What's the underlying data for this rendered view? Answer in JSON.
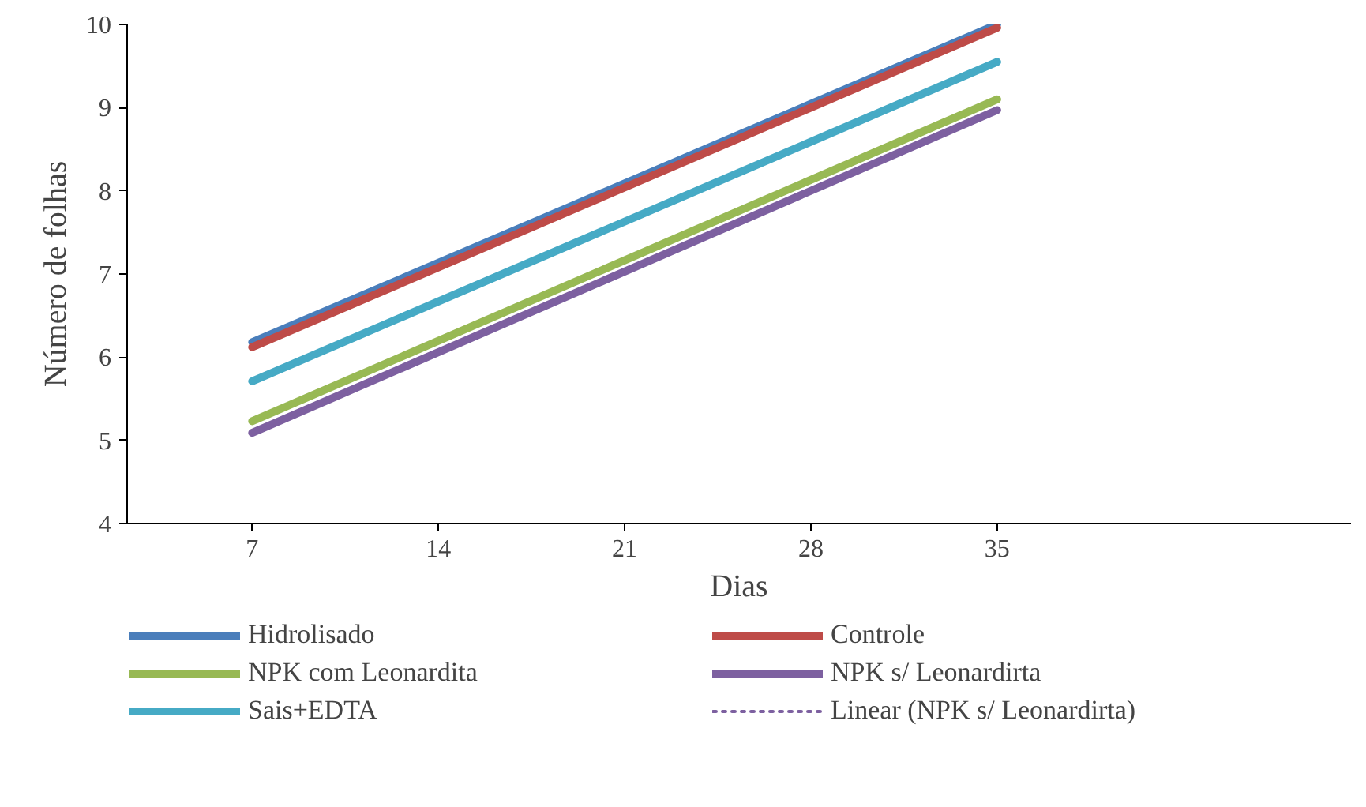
{
  "chart_data": {
    "type": "line",
    "xlabel": "Dias",
    "ylabel": "Número de folhas",
    "xlim": [
      2.3,
      48.3
    ],
    "xticks": [
      7,
      14,
      21,
      28,
      35
    ],
    "ylim": [
      4,
      10
    ],
    "yticks": [
      4,
      5,
      6,
      7,
      8,
      9,
      10
    ],
    "grid": false,
    "legend": "bottom",
    "marker": "none",
    "x": [
      7,
      35
    ],
    "series": [
      {
        "name": "Hidrolisado",
        "color": "#4a7ebb",
        "values": [
          6.18,
          10.0
        ]
      },
      {
        "name": "Controle",
        "color": "#be4b48",
        "values": [
          6.12,
          9.96
        ]
      },
      {
        "name": "NPK com Leonardita",
        "color": "#98b954",
        "values": [
          5.23,
          9.1
        ]
      },
      {
        "name": "NPK s/ Leonardirta",
        "color": "#7d60a0",
        "values": [
          5.09,
          8.97
        ]
      },
      {
        "name": "Sais+EDTA",
        "color": "#46aac5",
        "values": [
          5.71,
          9.55
        ]
      },
      {
        "name": "Linear (NPK s/ Leonardirta)",
        "color": "#7d60a0",
        "values": [
          null,
          null
        ],
        "line_style": "dotted"
      }
    ]
  }
}
